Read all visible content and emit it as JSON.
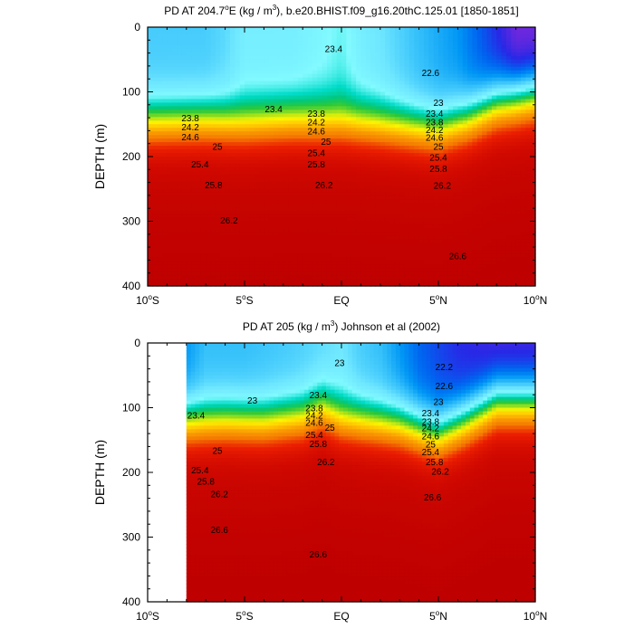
{
  "chart_data": [
    {
      "type": "heatmap",
      "subtype": "filled-contour",
      "title": "PD AT 204.7°E (kg / m³), b.e20.BHIST.f09_g16.20thC.125.01 [1850-1851]",
      "title_parts": [
        "PD AT 204.7",
        "o",
        "E (kg / m",
        "3",
        "), b.e20.BHIST.f09_g16.20thC.125.01 [1850-1851]"
      ],
      "ylabel": "DEPTH (m)",
      "xlim": [
        -10,
        10
      ],
      "ylim": [
        0,
        400
      ],
      "y_inverted": true,
      "x_ticks": [
        {
          "value": -10,
          "num": "10",
          "sup": "o",
          "suf": "S"
        },
        {
          "value": -5,
          "num": "5",
          "sup": "o",
          "suf": "S"
        },
        {
          "value": 0,
          "num": "EQ",
          "sup": "",
          "suf": ""
        },
        {
          "value": 5,
          "num": "5",
          "sup": "o",
          "suf": "N"
        },
        {
          "value": 10,
          "num": "10",
          "sup": "o",
          "suf": "N"
        }
      ],
      "y_ticks": [
        0,
        100,
        200,
        300,
        400
      ],
      "data_x_start": -10,
      "thermocline_x": [
        -10,
        -7,
        -5,
        -2.5,
        0,
        1.5,
        3,
        5,
        6.5,
        8,
        10
      ],
      "thermocline_depth": [
        150,
        148,
        152,
        148,
        150,
        153,
        157,
        163,
        148,
        125,
        112
      ],
      "surface_pd_x": [
        -10,
        -7,
        -6,
        -5,
        -2.5,
        -1,
        0,
        1,
        2,
        4,
        6,
        8,
        9,
        10
      ],
      "surface_pd": [
        23.1,
        23.1,
        23.2,
        23.4,
        23.4,
        23.5,
        23.6,
        23.4,
        23.3,
        23.0,
        22.8,
        22.4,
        22.2,
        22.2
      ],
      "contour_labels": [
        {
          "x": -0.4,
          "depth": 35,
          "text": "23.4"
        },
        {
          "x": 4.6,
          "depth": 72,
          "text": "22.6"
        },
        {
          "x": -3.5,
          "depth": 128,
          "text": "23.4"
        },
        {
          "x": 5.0,
          "depth": 118,
          "text": "23"
        },
        {
          "x": -7.8,
          "depth": 142,
          "text": "23.8"
        },
        {
          "x": -7.8,
          "depth": 156,
          "text": "24.2"
        },
        {
          "x": -7.8,
          "depth": 171,
          "text": "24.6"
        },
        {
          "x": -6.4,
          "depth": 186,
          "text": "25"
        },
        {
          "x": -7.3,
          "depth": 213,
          "text": "25.4"
        },
        {
          "x": -6.6,
          "depth": 245,
          "text": "25.8"
        },
        {
          "x": -5.8,
          "depth": 300,
          "text": "26.2"
        },
        {
          "x": -1.3,
          "depth": 135,
          "text": "23.8"
        },
        {
          "x": -1.3,
          "depth": 148,
          "text": "24.2"
        },
        {
          "x": -1.3,
          "depth": 162,
          "text": "24.6"
        },
        {
          "x": -0.8,
          "depth": 178,
          "text": "25"
        },
        {
          "x": -1.3,
          "depth": 196,
          "text": "25.4"
        },
        {
          "x": -1.3,
          "depth": 213,
          "text": "25.8"
        },
        {
          "x": -0.9,
          "depth": 245,
          "text": "26.2"
        },
        {
          "x": 4.8,
          "depth": 135,
          "text": "23.4"
        },
        {
          "x": 4.8,
          "depth": 148,
          "text": "23.8"
        },
        {
          "x": 4.8,
          "depth": 160,
          "text": "24.2"
        },
        {
          "x": 4.8,
          "depth": 172,
          "text": "24.6"
        },
        {
          "x": 5.0,
          "depth": 186,
          "text": "25"
        },
        {
          "x": 5.0,
          "depth": 203,
          "text": "25.4"
        },
        {
          "x": 5.0,
          "depth": 220,
          "text": "25.8"
        },
        {
          "x": 5.2,
          "depth": 246,
          "text": "26.2"
        },
        {
          "x": 6.0,
          "depth": 355,
          "text": "26.6"
        }
      ]
    },
    {
      "type": "heatmap",
      "subtype": "filled-contour",
      "title": "PD AT 205 (kg / m³) Johnson et al (2002)",
      "title_parts": [
        "PD AT 205 (kg / m",
        "3",
        ") Johnson et al (2002)"
      ],
      "ylabel": "DEPTH (m)",
      "xlim": [
        -10,
        10
      ],
      "ylim": [
        0,
        400
      ],
      "y_inverted": true,
      "x_ticks": [
        {
          "value": -10,
          "num": "10",
          "sup": "o",
          "suf": "S"
        },
        {
          "value": -5,
          "num": "5",
          "sup": "o",
          "suf": "S"
        },
        {
          "value": 0,
          "num": "EQ",
          "sup": "",
          "suf": ""
        },
        {
          "value": 5,
          "num": "5",
          "sup": "o",
          "suf": "N"
        },
        {
          "value": 10,
          "num": "10",
          "sup": "o",
          "suf": "N"
        }
      ],
      "y_ticks": [
        0,
        100,
        200,
        300,
        400
      ],
      "data_x_start": -8,
      "thermocline_x": [
        -8,
        -6,
        -4,
        -2,
        -1,
        0,
        1.5,
        3,
        5,
        6.5,
        8,
        10
      ],
      "thermocline_depth": [
        125,
        123,
        125,
        118,
        105,
        120,
        125,
        130,
        148,
        125,
        98,
        98
      ],
      "surface_pd_x": [
        -8,
        -7,
        -5,
        -2.5,
        -1,
        0,
        1,
        2,
        4,
        6,
        8,
        10
      ],
      "surface_pd": [
        22.8,
        23.0,
        23.0,
        23.1,
        23.2,
        23.3,
        23.1,
        23.0,
        22.6,
        22.4,
        22.3,
        22.3
      ],
      "contour_labels": [
        {
          "x": -0.1,
          "depth": 32,
          "text": "23"
        },
        {
          "x": 5.3,
          "depth": 38,
          "text": "22.2"
        },
        {
          "x": 5.3,
          "depth": 68,
          "text": "22.6"
        },
        {
          "x": -4.6,
          "depth": 90,
          "text": "23"
        },
        {
          "x": -7.5,
          "depth": 113,
          "text": "23.4"
        },
        {
          "x": 5.0,
          "depth": 92,
          "text": "23"
        },
        {
          "x": -1.2,
          "depth": 82,
          "text": "23.4"
        },
        {
          "x": -1.4,
          "depth": 102,
          "text": "23.8"
        },
        {
          "x": -1.4,
          "depth": 113,
          "text": "24.2"
        },
        {
          "x": -1.4,
          "depth": 124,
          "text": "24.6"
        },
        {
          "x": -0.6,
          "depth": 132,
          "text": "25"
        },
        {
          "x": -1.4,
          "depth": 143,
          "text": "25.4"
        },
        {
          "x": -1.2,
          "depth": 157,
          "text": "25.8"
        },
        {
          "x": -0.8,
          "depth": 185,
          "text": "26.2"
        },
        {
          "x": 4.6,
          "depth": 110,
          "text": "23.4"
        },
        {
          "x": 4.6,
          "depth": 123,
          "text": "23.8"
        },
        {
          "x": 4.6,
          "depth": 133,
          "text": "24.2"
        },
        {
          "x": 4.6,
          "depth": 145,
          "text": "24.6"
        },
        {
          "x": 4.6,
          "depth": 158,
          "text": "25"
        },
        {
          "x": 4.6,
          "depth": 170,
          "text": "25.4"
        },
        {
          "x": 4.8,
          "depth": 185,
          "text": "25.8"
        },
        {
          "x": 5.1,
          "depth": 200,
          "text": "26.2"
        },
        {
          "x": -6.4,
          "depth": 168,
          "text": "25"
        },
        {
          "x": -7.3,
          "depth": 198,
          "text": "25.4"
        },
        {
          "x": -7.0,
          "depth": 215,
          "text": "25.8"
        },
        {
          "x": -6.3,
          "depth": 235,
          "text": "26.2"
        },
        {
          "x": 4.7,
          "depth": 240,
          "text": "26.6"
        },
        {
          "x": -6.3,
          "depth": 290,
          "text": "26.6"
        },
        {
          "x": -1.2,
          "depth": 328,
          "text": "26.6"
        }
      ]
    }
  ]
}
